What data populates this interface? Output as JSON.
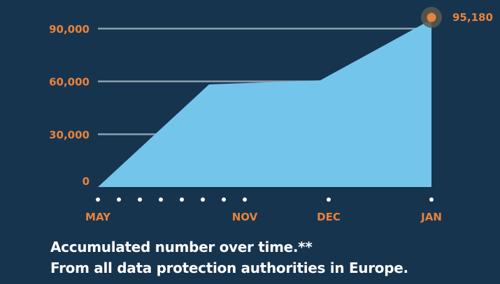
{
  "chart_data": {
    "type": "area",
    "title": "",
    "xlabel": "",
    "ylabel": "",
    "ylim": [
      0,
      90000
    ],
    "yticks": [
      {
        "value": 0,
        "label": "0"
      },
      {
        "value": 30000,
        "label": "30,000"
      },
      {
        "value": 60000,
        "label": "60,000"
      },
      {
        "value": 90000,
        "label": "90,000"
      }
    ],
    "grid": true,
    "xlim": [
      0,
      15.9
    ],
    "x_dots": [
      0,
      1,
      2,
      3,
      4,
      5,
      6,
      7,
      11,
      15.9
    ],
    "xticks": [
      {
        "value": 0,
        "label": "MAY"
      },
      {
        "value": 7,
        "label": "NOV"
      },
      {
        "value": 11,
        "label": "DEC"
      },
      {
        "value": 15.9,
        "label": "JAN"
      }
    ],
    "series": [
      {
        "name": "Accumulated number",
        "points": [
          [
            0,
            0
          ],
          [
            5.3,
            58300
          ],
          [
            10.6,
            60600
          ],
          [
            15.9,
            95180
          ]
        ]
      }
    ],
    "annotation": {
      "x": 15.9,
      "value": 95180,
      "label": "95,180"
    },
    "colors": {
      "area": "#74c5eb",
      "label": "#e8833a",
      "grid": "#8aa1b1",
      "dot": "#ffffff",
      "highlight": "#e8833a"
    }
  },
  "caption": {
    "line1": "Accumulated number over time.**",
    "line2": "From all data protection authorities in Europe."
  }
}
